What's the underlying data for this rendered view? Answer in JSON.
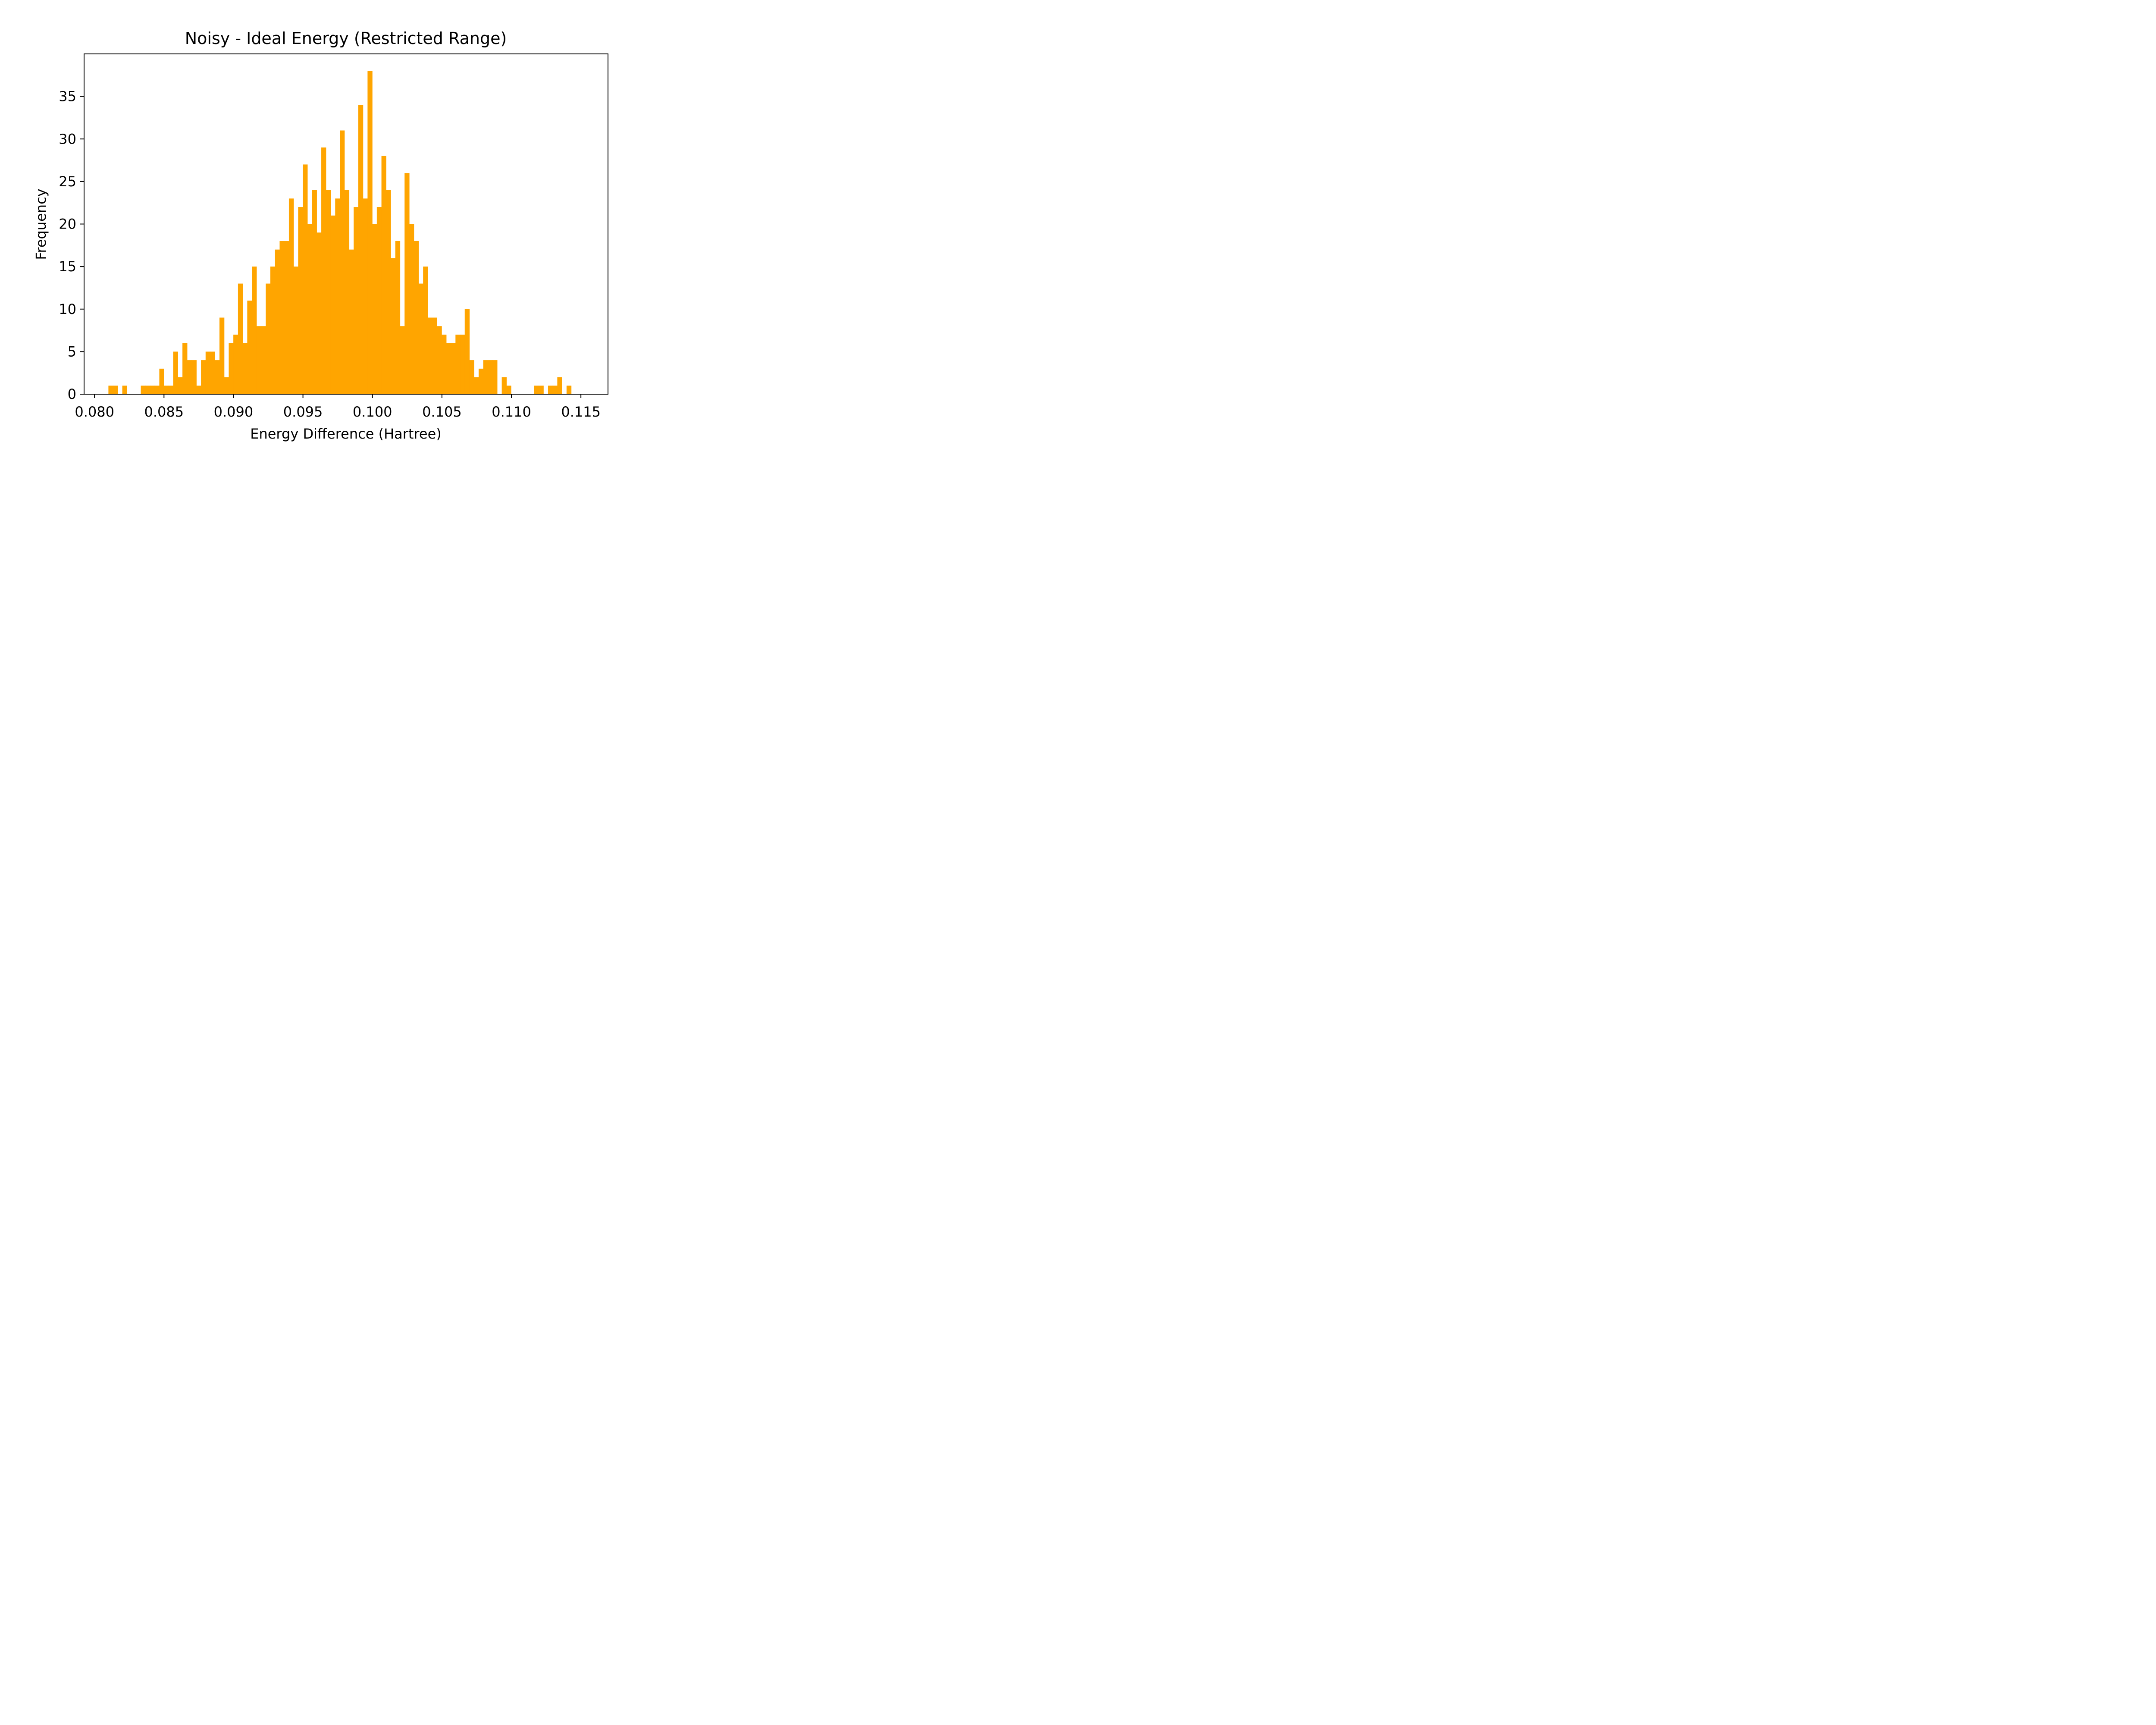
{
  "chart_data": {
    "type": "bar",
    "subtype": "histogram",
    "title": "Noisy - Ideal Energy (Restricted Range)",
    "xlabel": "Energy Difference (Hartree)",
    "ylabel": "Frequency",
    "xlim": [
      0.07925,
      0.11695
    ],
    "ylim": [
      0,
      40
    ],
    "bin_width": 0.000333,
    "bar_color": "#ffa500",
    "xticks": [
      0.08,
      0.085,
      0.09,
      0.095,
      0.1,
      0.105,
      0.11,
      0.115
    ],
    "xtick_labels": [
      "0.080",
      "0.085",
      "0.090",
      "0.095",
      "0.100",
      "0.105",
      "0.110",
      "0.115"
    ],
    "yticks": [
      0,
      5,
      10,
      15,
      20,
      25,
      30,
      35
    ],
    "ytick_labels": [
      "0",
      "5",
      "10",
      "15",
      "20",
      "25",
      "30",
      "35"
    ],
    "bin_start": 0.081,
    "values": [
      1,
      1,
      0,
      1,
      0,
      0,
      0,
      1,
      1,
      1,
      1,
      3,
      1,
      1,
      5,
      2,
      6,
      4,
      4,
      1,
      4,
      5,
      5,
      4,
      9,
      2,
      6,
      7,
      13,
      6,
      11,
      15,
      8,
      8,
      13,
      15,
      17,
      18,
      18,
      23,
      15,
      22,
      27,
      20,
      24,
      19,
      29,
      24,
      21,
      23,
      31,
      24,
      17,
      22,
      34,
      23,
      38,
      20,
      22,
      28,
      24,
      16,
      18,
      8,
      26,
      20,
      18,
      13,
      15,
      9,
      9,
      8,
      7,
      6,
      6,
      7,
      7,
      10,
      4,
      2,
      3,
      4,
      4,
      4,
      0,
      2,
      1,
      0,
      0,
      0,
      0,
      0,
      1,
      1,
      0,
      1,
      1,
      2,
      0,
      1
    ]
  }
}
